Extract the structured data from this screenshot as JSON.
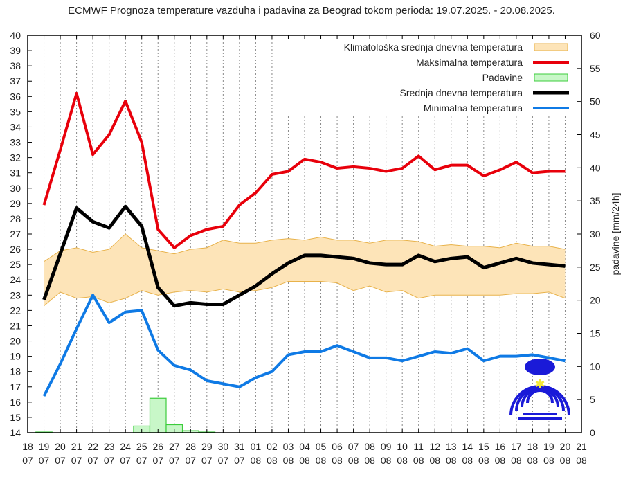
{
  "chart_data": {
    "type": "line",
    "title": "ECMWF Prognoza temperature vazduha i padavina za Beograd tokom perioda: 19.07.2025. - 20.08.2025.",
    "ylabel_right": "padavine [mm/24h]",
    "ylim": [
      14,
      40
    ],
    "ylim_right": [
      0,
      60
    ],
    "yticks": [
      14,
      15,
      16,
      17,
      18,
      19,
      20,
      21,
      22,
      23,
      24,
      25,
      26,
      27,
      28,
      29,
      30,
      31,
      32,
      33,
      34,
      35,
      36,
      37,
      38,
      39,
      40
    ],
    "yticks_right": [
      0,
      5,
      10,
      15,
      20,
      25,
      30,
      35,
      40,
      45,
      50,
      55,
      60
    ],
    "grid": "vertical dashed per day",
    "legend_position": "top-right",
    "x_ticks": [
      [
        "18",
        "07"
      ],
      [
        "19",
        "07"
      ],
      [
        "20",
        "07"
      ],
      [
        "21",
        "07"
      ],
      [
        "22",
        "07"
      ],
      [
        "23",
        "07"
      ],
      [
        "24",
        "07"
      ],
      [
        "25",
        "07"
      ],
      [
        "26",
        "07"
      ],
      [
        "27",
        "07"
      ],
      [
        "28",
        "07"
      ],
      [
        "29",
        "07"
      ],
      [
        "30",
        "07"
      ],
      [
        "31",
        "07"
      ],
      [
        "01",
        "08"
      ],
      [
        "02",
        "08"
      ],
      [
        "03",
        "08"
      ],
      [
        "04",
        "08"
      ],
      [
        "05",
        "08"
      ],
      [
        "06",
        "08"
      ],
      [
        "07",
        "08"
      ],
      [
        "08",
        "08"
      ],
      [
        "09",
        "08"
      ],
      [
        "10",
        "08"
      ],
      [
        "11",
        "08"
      ],
      [
        "12",
        "08"
      ],
      [
        "13",
        "08"
      ],
      [
        "14",
        "08"
      ],
      [
        "15",
        "08"
      ],
      [
        "16",
        "08"
      ],
      [
        "17",
        "08"
      ],
      [
        "18",
        "08"
      ],
      [
        "19",
        "08"
      ],
      [
        "20",
        "08"
      ],
      [
        "21",
        "08"
      ]
    ],
    "x": [
      "19.07",
      "20.07",
      "21.07",
      "22.07",
      "23.07",
      "24.07",
      "25.07",
      "26.07",
      "27.07",
      "28.07",
      "29.07",
      "30.07",
      "31.07",
      "01.08",
      "02.08",
      "03.08",
      "04.08",
      "05.08",
      "06.08",
      "07.08",
      "08.08",
      "09.08",
      "10.08",
      "11.08",
      "12.08",
      "13.08",
      "14.08",
      "15.08",
      "16.08",
      "17.08",
      "18.08",
      "19.08",
      "20.08"
    ],
    "climatology": {
      "name": "Klimatološka srednja dnevna temperatura",
      "color": "#fde4b8",
      "upper": [
        25.2,
        25.9,
        26.1,
        25.8,
        26.0,
        27.0,
        26.1,
        25.9,
        25.7,
        26.0,
        26.1,
        26.6,
        26.4,
        26.4,
        26.6,
        26.7,
        26.6,
        26.8,
        26.6,
        26.6,
        26.4,
        26.6,
        26.6,
        26.5,
        26.2,
        26.3,
        26.2,
        26.2,
        26.1,
        26.4,
        26.2,
        26.2,
        26.0
      ],
      "lower": [
        22.3,
        23.2,
        22.8,
        22.9,
        22.5,
        22.8,
        23.3,
        23.0,
        23.2,
        23.3,
        23.2,
        23.4,
        23.2,
        23.3,
        23.5,
        23.9,
        23.9,
        23.9,
        23.8,
        23.3,
        23.6,
        23.2,
        23.3,
        22.8,
        23.0,
        23.0,
        23.0,
        23.0,
        23.0,
        23.1,
        23.1,
        23.2,
        22.8
      ]
    },
    "series": [
      {
        "name": "Maksimalna temperatura",
        "color": "#e8000b",
        "values": [
          28.9,
          32.5,
          36.2,
          32.2,
          33.5,
          35.7,
          33.0,
          27.3,
          26.1,
          26.9,
          27.3,
          27.5,
          28.9,
          29.7,
          30.9,
          31.1,
          31.9,
          31.7,
          31.3,
          31.4,
          31.3,
          31.1,
          31.3,
          32.1,
          31.2,
          31.5,
          31.5,
          30.8,
          31.2,
          31.7,
          31.0,
          31.1,
          31.1
        ]
      },
      {
        "name": "Srednja dnevna temperatura",
        "color": "#000000",
        "values": [
          22.7,
          25.7,
          28.7,
          27.8,
          27.4,
          28.8,
          27.5,
          23.5,
          22.3,
          22.5,
          22.4,
          22.4,
          23.0,
          23.6,
          24.4,
          25.1,
          25.6,
          25.6,
          25.5,
          25.4,
          25.1,
          25.0,
          25.0,
          25.6,
          25.2,
          25.4,
          25.5,
          24.8,
          25.1,
          25.4,
          25.1,
          25.0,
          24.9
        ]
      },
      {
        "name": "Minimalna temperatura",
        "color": "#0f7ae5",
        "values": [
          16.4,
          18.5,
          20.8,
          23.0,
          21.2,
          21.9,
          22.0,
          19.4,
          18.4,
          18.1,
          17.4,
          17.2,
          17.0,
          17.6,
          18.0,
          19.1,
          19.3,
          19.3,
          19.7,
          19.3,
          18.9,
          18.9,
          18.7,
          19.0,
          19.3,
          19.2,
          19.5,
          18.7,
          19.0,
          19.0,
          19.1,
          18.9,
          18.7
        ]
      }
    ],
    "precipitation": {
      "name": "Padavine",
      "color": "#c8f7c8",
      "edge": "#3ccc3c",
      "x": [
        "19.07",
        "25.07",
        "26.07",
        "27.07",
        "28.07",
        "29.07"
      ],
      "values": [
        0.1,
        1.0,
        5.2,
        1.2,
        0.3,
        0.1
      ]
    }
  }
}
